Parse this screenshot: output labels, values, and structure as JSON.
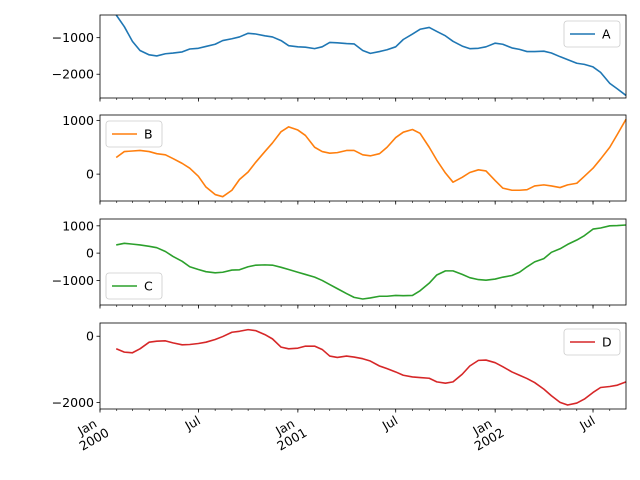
{
  "chart_data": {
    "type": "line",
    "subplots": "stacked, shared x-axis",
    "x_range": [
      "2000-01-01",
      "2002-08-31"
    ],
    "x_ticks": [
      {
        "date": "2000-01-01",
        "label": [
          "Jan",
          "2000"
        ],
        "major": true
      },
      {
        "date": "2000-07-01",
        "label": [
          "Jul"
        ],
        "major": true
      },
      {
        "date": "2001-01-01",
        "label": [
          "Jan",
          "2001"
        ],
        "major": true
      },
      {
        "date": "2001-07-01",
        "label": [
          "Jul"
        ],
        "major": true
      },
      {
        "date": "2002-01-01",
        "label": [
          "Jan",
          "2002"
        ],
        "major": true
      },
      {
        "date": "2002-07-01",
        "label": [
          "Jul"
        ],
        "major": true
      }
    ],
    "series": [
      {
        "name": "A",
        "color": "#1f77b4",
        "ylim": [
          -2650,
          -380
        ],
        "yticks": [
          -1000,
          -2000
        ],
        "ytick_labels": [
          "−1000",
          "−2000"
        ],
        "legend_position": "top-right",
        "points": [
          [
            "2000-01-31",
            -380
          ],
          [
            "2000-02-15",
            -700
          ],
          [
            "2000-03-01",
            -1100
          ],
          [
            "2000-03-15",
            -1350
          ],
          [
            "2000-04-01",
            -1470
          ],
          [
            "2000-04-15",
            -1500
          ],
          [
            "2000-05-01",
            -1440
          ],
          [
            "2000-05-15",
            -1420
          ],
          [
            "2000-06-01",
            -1390
          ],
          [
            "2000-06-15",
            -1310
          ],
          [
            "2000-07-01",
            -1290
          ],
          [
            "2000-07-15",
            -1240
          ],
          [
            "2000-08-01",
            -1180
          ],
          [
            "2000-08-15",
            -1080
          ],
          [
            "2000-09-01",
            -1030
          ],
          [
            "2000-09-15",
            -980
          ],
          [
            "2000-10-01",
            -880
          ],
          [
            "2000-10-15",
            -900
          ],
          [
            "2000-11-01",
            -950
          ],
          [
            "2000-11-15",
            -980
          ],
          [
            "2000-12-01",
            -1080
          ],
          [
            "2000-12-15",
            -1220
          ],
          [
            "2001-01-01",
            -1250
          ],
          [
            "2001-01-15",
            -1260
          ],
          [
            "2001-02-01",
            -1300
          ],
          [
            "2001-02-15",
            -1250
          ],
          [
            "2001-03-01",
            -1130
          ],
          [
            "2001-03-15",
            -1140
          ],
          [
            "2001-04-01",
            -1160
          ],
          [
            "2001-04-15",
            -1170
          ],
          [
            "2001-05-01",
            -1350
          ],
          [
            "2001-05-15",
            -1430
          ],
          [
            "2001-06-01",
            -1380
          ],
          [
            "2001-06-15",
            -1330
          ],
          [
            "2001-07-01",
            -1250
          ],
          [
            "2001-07-15",
            -1050
          ],
          [
            "2001-08-01",
            -900
          ],
          [
            "2001-08-15",
            -770
          ],
          [
            "2001-09-01",
            -720
          ],
          [
            "2001-09-15",
            -830
          ],
          [
            "2001-10-01",
            -950
          ],
          [
            "2001-10-15",
            -1100
          ],
          [
            "2001-11-01",
            -1230
          ],
          [
            "2001-11-15",
            -1300
          ],
          [
            "2001-12-01",
            -1290
          ],
          [
            "2001-12-15",
            -1250
          ],
          [
            "2002-01-01",
            -1150
          ],
          [
            "2002-01-15",
            -1180
          ],
          [
            "2002-02-01",
            -1280
          ],
          [
            "2002-02-15",
            -1320
          ],
          [
            "2002-03-01",
            -1380
          ],
          [
            "2002-03-15",
            -1380
          ],
          [
            "2002-04-01",
            -1370
          ],
          [
            "2002-04-15",
            -1420
          ],
          [
            "2002-05-01",
            -1520
          ],
          [
            "2002-05-15",
            -1600
          ],
          [
            "2002-06-01",
            -1700
          ],
          [
            "2002-06-15",
            -1730
          ],
          [
            "2002-07-01",
            -1800
          ],
          [
            "2002-07-15",
            -1950
          ],
          [
            "2002-08-01",
            -2250
          ],
          [
            "2002-08-15",
            -2400
          ],
          [
            "2002-08-31",
            -2580
          ]
        ]
      },
      {
        "name": "B",
        "color": "#ff7f0e",
        "ylim": [
          -500,
          1100
        ],
        "yticks": [
          1000,
          0
        ],
        "ytick_labels": [
          "1000",
          "0"
        ],
        "legend_position": "top-left",
        "points": [
          [
            "2000-01-31",
            310
          ],
          [
            "2000-02-15",
            420
          ],
          [
            "2000-03-01",
            430
          ],
          [
            "2000-03-15",
            440
          ],
          [
            "2000-04-01",
            420
          ],
          [
            "2000-04-15",
            380
          ],
          [
            "2000-05-01",
            360
          ],
          [
            "2000-05-15",
            290
          ],
          [
            "2000-06-01",
            200
          ],
          [
            "2000-06-15",
            110
          ],
          [
            "2000-07-01",
            -40
          ],
          [
            "2000-07-15",
            -240
          ],
          [
            "2000-08-01",
            -380
          ],
          [
            "2000-08-15",
            -420
          ],
          [
            "2000-09-01",
            -300
          ],
          [
            "2000-09-15",
            -100
          ],
          [
            "2000-10-01",
            40
          ],
          [
            "2000-10-15",
            220
          ],
          [
            "2000-11-01",
            420
          ],
          [
            "2000-11-15",
            580
          ],
          [
            "2000-12-01",
            790
          ],
          [
            "2000-12-15",
            880
          ],
          [
            "2001-01-01",
            820
          ],
          [
            "2001-01-15",
            720
          ],
          [
            "2001-02-01",
            500
          ],
          [
            "2001-02-15",
            420
          ],
          [
            "2001-03-01",
            390
          ],
          [
            "2001-03-15",
            400
          ],
          [
            "2001-04-01",
            440
          ],
          [
            "2001-04-15",
            440
          ],
          [
            "2001-05-01",
            360
          ],
          [
            "2001-05-15",
            340
          ],
          [
            "2001-06-01",
            380
          ],
          [
            "2001-06-15",
            500
          ],
          [
            "2001-07-01",
            680
          ],
          [
            "2001-07-15",
            780
          ],
          [
            "2001-08-01",
            830
          ],
          [
            "2001-08-15",
            760
          ],
          [
            "2001-09-01",
            500
          ],
          [
            "2001-09-15",
            260
          ],
          [
            "2001-10-01",
            20
          ],
          [
            "2001-10-15",
            -150
          ],
          [
            "2001-11-01",
            -60
          ],
          [
            "2001-11-15",
            30
          ],
          [
            "2001-12-01",
            80
          ],
          [
            "2001-12-15",
            60
          ],
          [
            "2002-01-01",
            -120
          ],
          [
            "2002-01-15",
            -260
          ],
          [
            "2002-02-01",
            -300
          ],
          [
            "2002-02-15",
            -300
          ],
          [
            "2002-03-01",
            -290
          ],
          [
            "2002-03-15",
            -220
          ],
          [
            "2002-04-01",
            -200
          ],
          [
            "2002-04-15",
            -220
          ],
          [
            "2002-05-01",
            -250
          ],
          [
            "2002-05-15",
            -200
          ],
          [
            "2002-06-01",
            -170
          ],
          [
            "2002-06-15",
            -40
          ],
          [
            "2002-07-01",
            110
          ],
          [
            "2002-07-15",
            280
          ],
          [
            "2002-08-01",
            500
          ],
          [
            "2002-08-15",
            740
          ],
          [
            "2002-08-31",
            1020
          ]
        ]
      },
      {
        "name": "C",
        "color": "#2ca02c",
        "ylim": [
          -1900,
          1250
        ],
        "yticks": [
          1000,
          0,
          -1000
        ],
        "ytick_labels": [
          "1000",
          "0",
          "−1000"
        ],
        "legend_position": "bottom-left",
        "points": [
          [
            "2000-01-31",
            300
          ],
          [
            "2000-02-15",
            360
          ],
          [
            "2000-03-01",
            330
          ],
          [
            "2000-03-15",
            300
          ],
          [
            "2000-04-01",
            250
          ],
          [
            "2000-04-15",
            200
          ],
          [
            "2000-05-01",
            60
          ],
          [
            "2000-05-15",
            -120
          ],
          [
            "2000-06-01",
            -300
          ],
          [
            "2000-06-15",
            -500
          ],
          [
            "2000-07-01",
            -600
          ],
          [
            "2000-07-15",
            -680
          ],
          [
            "2000-08-01",
            -720
          ],
          [
            "2000-08-15",
            -700
          ],
          [
            "2000-09-01",
            -620
          ],
          [
            "2000-09-15",
            -610
          ],
          [
            "2000-10-01",
            -500
          ],
          [
            "2000-10-15",
            -440
          ],
          [
            "2000-11-01",
            -430
          ],
          [
            "2000-11-15",
            -440
          ],
          [
            "2000-12-01",
            -520
          ],
          [
            "2000-12-15",
            -600
          ],
          [
            "2001-01-01",
            -700
          ],
          [
            "2001-01-15",
            -780
          ],
          [
            "2001-02-01",
            -880
          ],
          [
            "2001-02-15",
            -1000
          ],
          [
            "2001-03-01",
            -1150
          ],
          [
            "2001-03-15",
            -1300
          ],
          [
            "2001-04-01",
            -1480
          ],
          [
            "2001-04-15",
            -1620
          ],
          [
            "2001-05-01",
            -1680
          ],
          [
            "2001-05-15",
            -1640
          ],
          [
            "2001-06-01",
            -1580
          ],
          [
            "2001-06-15",
            -1580
          ],
          [
            "2001-07-01",
            -1550
          ],
          [
            "2001-07-15",
            -1560
          ],
          [
            "2001-08-01",
            -1550
          ],
          [
            "2001-08-15",
            -1380
          ],
          [
            "2001-09-01",
            -1100
          ],
          [
            "2001-09-15",
            -800
          ],
          [
            "2001-10-01",
            -650
          ],
          [
            "2001-10-15",
            -650
          ],
          [
            "2001-11-01",
            -780
          ],
          [
            "2001-11-15",
            -900
          ],
          [
            "2001-12-01",
            -970
          ],
          [
            "2001-12-15",
            -990
          ],
          [
            "2002-01-01",
            -950
          ],
          [
            "2002-01-15",
            -880
          ],
          [
            "2002-02-01",
            -820
          ],
          [
            "2002-02-15",
            -700
          ],
          [
            "2002-03-01",
            -500
          ],
          [
            "2002-03-15",
            -320
          ],
          [
            "2002-04-01",
            -200
          ],
          [
            "2002-04-15",
            30
          ],
          [
            "2002-05-01",
            160
          ],
          [
            "2002-05-15",
            320
          ],
          [
            "2002-06-01",
            480
          ],
          [
            "2002-06-15",
            640
          ],
          [
            "2002-07-01",
            880
          ],
          [
            "2002-07-15",
            920
          ],
          [
            "2002-08-01",
            1000
          ],
          [
            "2002-08-15",
            1010
          ],
          [
            "2002-08-31",
            1030
          ]
        ]
      },
      {
        "name": "D",
        "color": "#d62728",
        "ylim": [
          -2200,
          400
        ],
        "yticks": [
          0,
          -2000
        ],
        "ytick_labels": [
          "0",
          "−2000"
        ],
        "legend_position": "top-right",
        "points": [
          [
            "2000-01-31",
            -380
          ],
          [
            "2000-02-15",
            -480
          ],
          [
            "2000-03-01",
            -500
          ],
          [
            "2000-03-15",
            -380
          ],
          [
            "2000-04-01",
            -180
          ],
          [
            "2000-04-15",
            -150
          ],
          [
            "2000-05-01",
            -140
          ],
          [
            "2000-05-15",
            -200
          ],
          [
            "2000-06-01",
            -260
          ],
          [
            "2000-06-15",
            -250
          ],
          [
            "2000-07-01",
            -220
          ],
          [
            "2000-07-15",
            -180
          ],
          [
            "2000-08-01",
            -100
          ],
          [
            "2000-08-15",
            -10
          ],
          [
            "2000-09-01",
            120
          ],
          [
            "2000-09-15",
            150
          ],
          [
            "2000-10-01",
            200
          ],
          [
            "2000-10-15",
            170
          ],
          [
            "2000-11-01",
            50
          ],
          [
            "2000-11-15",
            -80
          ],
          [
            "2000-12-01",
            -330
          ],
          [
            "2000-12-15",
            -380
          ],
          [
            "2001-01-01",
            -360
          ],
          [
            "2001-01-15",
            -300
          ],
          [
            "2001-02-01",
            -300
          ],
          [
            "2001-02-15",
            -400
          ],
          [
            "2001-03-01",
            -600
          ],
          [
            "2001-03-15",
            -640
          ],
          [
            "2001-04-01",
            -600
          ],
          [
            "2001-04-15",
            -630
          ],
          [
            "2001-05-01",
            -680
          ],
          [
            "2001-05-15",
            -750
          ],
          [
            "2001-06-01",
            -900
          ],
          [
            "2001-06-15",
            -980
          ],
          [
            "2001-07-01",
            -1080
          ],
          [
            "2001-07-15",
            -1180
          ],
          [
            "2001-08-01",
            -1230
          ],
          [
            "2001-08-15",
            -1250
          ],
          [
            "2001-09-01",
            -1270
          ],
          [
            "2001-09-15",
            -1380
          ],
          [
            "2001-10-01",
            -1420
          ],
          [
            "2001-10-15",
            -1380
          ],
          [
            "2001-11-01",
            -1150
          ],
          [
            "2001-11-15",
            -900
          ],
          [
            "2001-12-01",
            -730
          ],
          [
            "2001-12-15",
            -720
          ],
          [
            "2002-01-01",
            -800
          ],
          [
            "2002-01-15",
            -920
          ],
          [
            "2002-02-01",
            -1080
          ],
          [
            "2002-02-15",
            -1180
          ],
          [
            "2002-03-01",
            -1280
          ],
          [
            "2002-03-15",
            -1400
          ],
          [
            "2002-04-01",
            -1600
          ],
          [
            "2002-04-15",
            -1800
          ],
          [
            "2002-05-01",
            -2000
          ],
          [
            "2002-05-15",
            -2080
          ],
          [
            "2002-06-01",
            -2020
          ],
          [
            "2002-06-15",
            -1900
          ],
          [
            "2002-07-01",
            -1700
          ],
          [
            "2002-07-15",
            -1550
          ],
          [
            "2002-08-01",
            -1520
          ],
          [
            "2002-08-15",
            -1480
          ],
          [
            "2002-08-31",
            -1380
          ]
        ]
      }
    ]
  }
}
